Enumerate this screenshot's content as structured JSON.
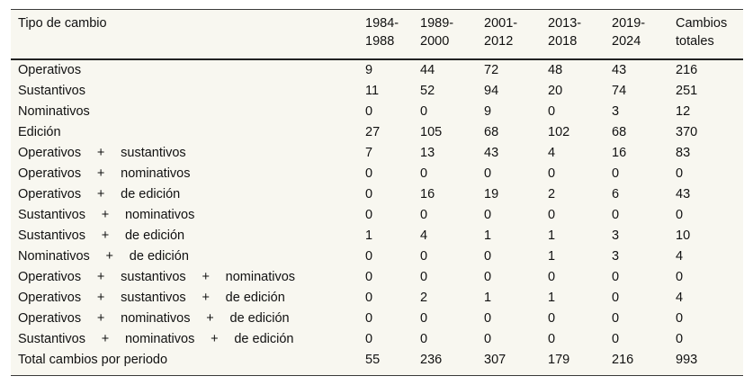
{
  "table": {
    "headers": [
      [
        "Tipo de cambio"
      ],
      [
        "1984-",
        "1988"
      ],
      [
        "1989-",
        "2000"
      ],
      [
        "2001-",
        "2012"
      ],
      [
        "2013-",
        "2018"
      ],
      [
        "2019-",
        "2024"
      ],
      [
        "Cambios",
        "totales"
      ]
    ],
    "rows": [
      {
        "label": [
          "Operativos"
        ],
        "values": [
          "9",
          "44",
          "72",
          "48",
          "43",
          "216"
        ]
      },
      {
        "label": [
          "Sustantivos"
        ],
        "values": [
          "11",
          "52",
          "94",
          "20",
          "74",
          "251"
        ]
      },
      {
        "label": [
          "Nominativos"
        ],
        "values": [
          "0",
          "0",
          "9",
          "0",
          "3",
          "12"
        ]
      },
      {
        "label": [
          "Edición"
        ],
        "values": [
          "27",
          "105",
          "68",
          "102",
          "68",
          "370"
        ]
      },
      {
        "label": [
          "Operativos",
          "+",
          "sustantivos"
        ],
        "values": [
          "7",
          "13",
          "43",
          "4",
          "16",
          "83"
        ]
      },
      {
        "label": [
          "Operativos",
          "+",
          "nominativos"
        ],
        "values": [
          "0",
          "0",
          "0",
          "0",
          "0",
          "0"
        ]
      },
      {
        "label": [
          "Operativos",
          "+",
          "de edición"
        ],
        "values": [
          "0",
          "16",
          "19",
          "2",
          "6",
          "43"
        ]
      },
      {
        "label": [
          "Sustantivos",
          "+",
          "nominativos"
        ],
        "values": [
          "0",
          "0",
          "0",
          "0",
          "0",
          "0"
        ]
      },
      {
        "label": [
          "Sustantivos",
          "+",
          "de edición"
        ],
        "values": [
          "1",
          "4",
          "1",
          "1",
          "3",
          "10"
        ]
      },
      {
        "label": [
          "Nominativos",
          "+",
          "de edición"
        ],
        "values": [
          "0",
          "0",
          "0",
          "1",
          "3",
          "4"
        ]
      },
      {
        "label": [
          "Operativos",
          "+",
          "sustantivos",
          "+",
          "nominativos"
        ],
        "values": [
          "0",
          "0",
          "0",
          "0",
          "0",
          "0"
        ]
      },
      {
        "label": [
          "Operativos",
          "+",
          "sustantivos",
          "+",
          "de edición"
        ],
        "values": [
          "0",
          "2",
          "1",
          "1",
          "0",
          "4"
        ]
      },
      {
        "label": [
          "Operativos",
          "+",
          "nominativos",
          "+",
          "de edición"
        ],
        "values": [
          "0",
          "0",
          "0",
          "0",
          "0",
          "0"
        ]
      },
      {
        "label": [
          "Sustantivos",
          "+",
          "nominativos",
          "+",
          "de edición"
        ],
        "values": [
          "0",
          "0",
          "0",
          "0",
          "0",
          "0"
        ]
      },
      {
        "label": [
          "Total cambios por periodo"
        ],
        "values": [
          "55",
          "236",
          "307",
          "179",
          "216",
          "993"
        ]
      }
    ]
  }
}
